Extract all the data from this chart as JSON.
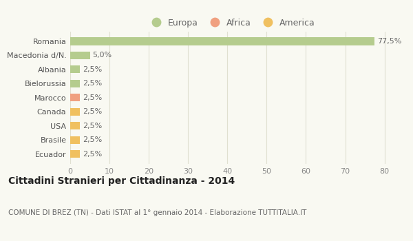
{
  "categories": [
    "Ecuador",
    "Brasile",
    "USA",
    "Canada",
    "Marocco",
    "Bielorussia",
    "Albania",
    "Macedonia d/N.",
    "Romania"
  ],
  "values": [
    2.5,
    2.5,
    2.5,
    2.5,
    2.5,
    2.5,
    2.5,
    5.0,
    77.5
  ],
  "colors": [
    "#f0c060",
    "#f0c060",
    "#f0c060",
    "#f0c060",
    "#f0a080",
    "#b5cc8e",
    "#b5cc8e",
    "#b5cc8e",
    "#b5cc8e"
  ],
  "labels": [
    "2,5%",
    "2,5%",
    "2,5%",
    "2,5%",
    "2,5%",
    "2,5%",
    "2,5%",
    "5,0%",
    "77,5%"
  ],
  "legend": [
    {
      "label": "Europa",
      "color": "#b5cc8e"
    },
    {
      "label": "Africa",
      "color": "#f0a080"
    },
    {
      "label": "America",
      "color": "#f0c060"
    }
  ],
  "title": "Cittadini Stranieri per Cittadinanza - 2014",
  "subtitle": "COMUNE DI BREZ (TN) - Dati ISTAT al 1° gennaio 2014 - Elaborazione TUTTITALIA.IT",
  "xlim": [
    0,
    82
  ],
  "xticks": [
    0,
    10,
    20,
    30,
    40,
    50,
    60,
    70,
    80
  ],
  "bg_color": "#f9f9f2",
  "grid_color": "#e0e0d0",
  "bar_height": 0.55,
  "label_fontsize": 8,
  "ytick_fontsize": 8,
  "xtick_fontsize": 8
}
